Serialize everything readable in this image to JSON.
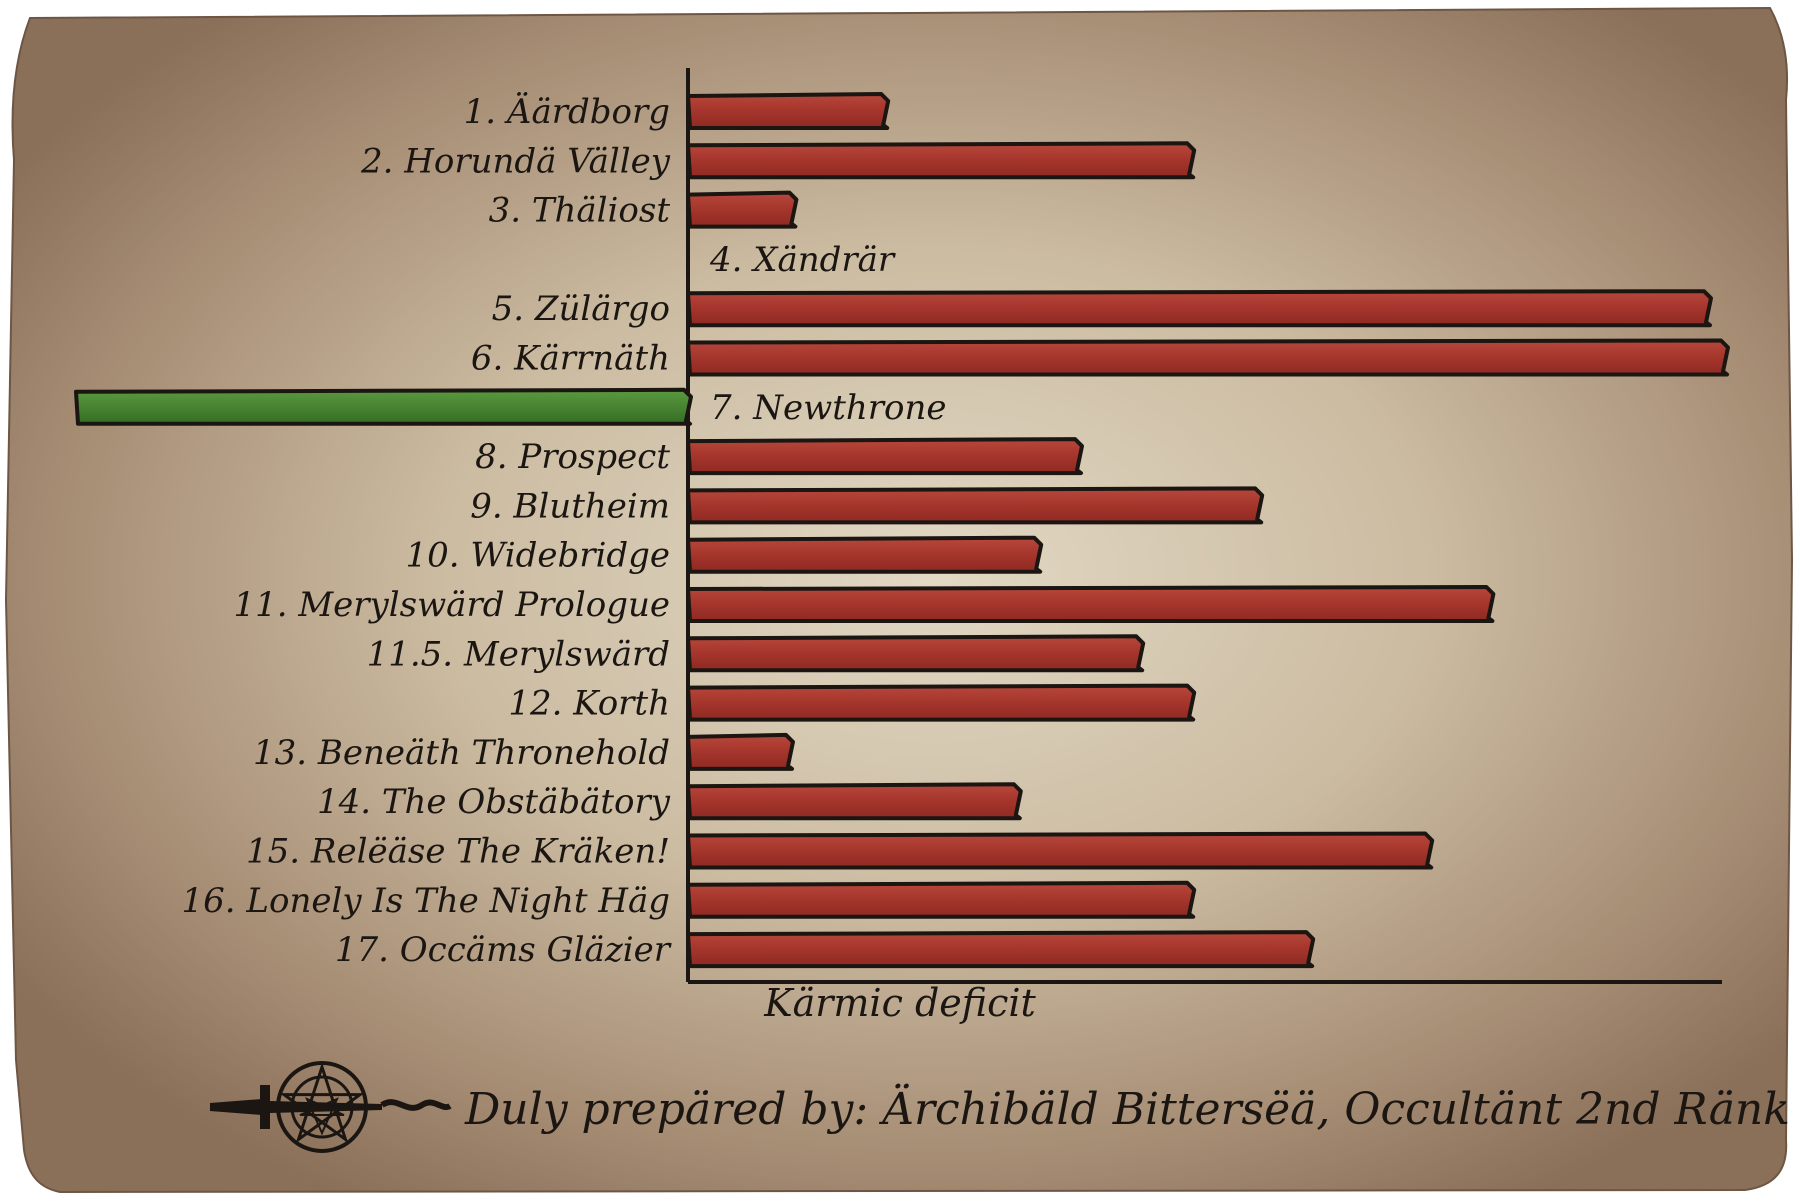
{
  "colors": {
    "parchment": "#a8907a",
    "parchment_light": "#d9cdb7",
    "bar_positive": "#a8382f",
    "bar_negative": "#3f7a2b",
    "ink": "#1b1612"
  },
  "chart_data": {
    "type": "bar",
    "orientation": "horizontal",
    "title": "",
    "xlabel": "Kärmic deficit",
    "ylabel": "",
    "xlim": [
      -18,
      31
    ],
    "grid": false,
    "legend": "none",
    "categories": [
      "1. Äärdborg",
      "2. Horundä Välley",
      "3. Thäliost",
      "4. Xändrär",
      "5. Zülärgo",
      "6. Kärrnäth",
      "7. Newthrone",
      "8. Prospect",
      "9. Blutheim",
      "10. Widebridge",
      "11. Merylswärd Prologue",
      "11.5. Merylswärd",
      "12. Korth",
      "13. Beneäth Thronehold",
      "14. The Obstäbätory",
      "15. Relëäse The Kräken!",
      "16. Lonely Is The Night Häg",
      "17. Occäms Gläzier"
    ],
    "values": [
      5.8,
      14.8,
      3.1,
      0,
      30.0,
      30.5,
      -18.0,
      11.5,
      16.8,
      10.3,
      23.6,
      13.3,
      14.8,
      3.0,
      9.7,
      21.8,
      14.8,
      18.3
    ]
  },
  "footer": {
    "signature": "Duly prepäred by: Ärchibäld Bittersëä, Occultänt 2nd Ränk",
    "emblem_icon": "dagger-knot-emblem-icon"
  }
}
